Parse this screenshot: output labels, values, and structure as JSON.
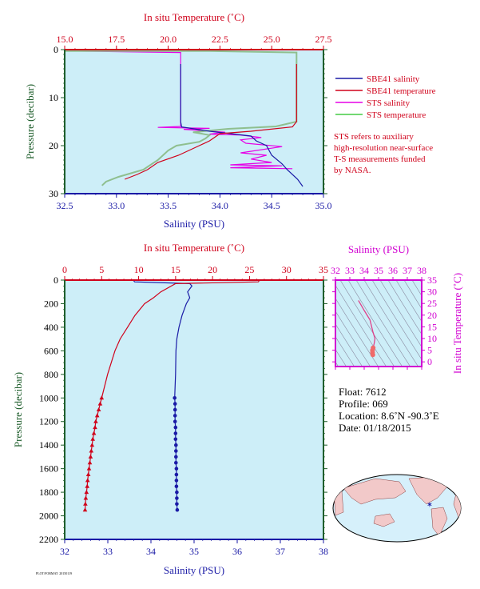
{
  "top_panel": {
    "top_axis_label": "In situ Temperature (˚C)",
    "left_axis_label": "Pressure (decibar)",
    "bottom_axis_label": "Salinity (PSU)"
  },
  "legend": [
    {
      "label": "SBE41 salinity",
      "color": "#1a1aa6"
    },
    {
      "label": "SBE41 temperature",
      "color": "#d0021b"
    },
    {
      "label": "STS salinity",
      "color": "#e600e6"
    },
    {
      "label": "STS temperature",
      "color": "#44cc44"
    }
  ],
  "note_lines": [
    "STS refers to auxiliary",
    "high-resolution near-surface",
    "T-S measurements funded",
    "by NASA."
  ],
  "bottom_panel": {
    "top_axis_label": "In situ Temperature (˚C)",
    "left_axis_label": "Pressure (decibar)",
    "bottom_axis_label": "Salinity (PSU)"
  },
  "ts_panel": {
    "top_axis_label": "Salinity (PSU)",
    "right_axis_label": "In situ Temperature (˚C)"
  },
  "float_info": {
    "float": "Float:  7612",
    "profile": "Profile:  069",
    "location": "Location:  8.6˚N  -90.3˚E",
    "date": "Date:  01/18/2015"
  },
  "footer_text": "PLOT/FORMAT: 20150119",
  "colors": {
    "plot_bg": "#cdeef8",
    "salinity": "#1a1aa6",
    "temperature": "#d0021b",
    "sts_salinity": "#e600e6",
    "sts_temperature": "#8fbf8f",
    "axis_red": "#d0021b",
    "axis_green": "#1f5e2c",
    "axis_magenta": "#d100d1"
  },
  "chart_data": [
    {
      "type": "line",
      "title": "",
      "xlabel": "Salinity (PSU)",
      "x2label": "In situ Temperature (˚C)",
      "ylabel": "Pressure (decibar)",
      "xlim": [
        32.5,
        35.0
      ],
      "x2lim": [
        15.0,
        27.5
      ],
      "ylim": [
        30,
        0
      ],
      "x_ticks": [
        "32.5",
        "33.0",
        "33.5",
        "34.0",
        "34.5",
        "35.0"
      ],
      "x2_ticks": [
        "15.0",
        "17.5",
        "20.0",
        "22.5",
        "25.0",
        "27.5"
      ],
      "y_ticks": [
        "0",
        "10",
        "20",
        "30"
      ],
      "series": [
        {
          "name": "SBE41 salinity",
          "axis": "salinity",
          "points": [
            [
              33.62,
              3
            ],
            [
              33.62,
              15
            ],
            [
              33.63,
              16.1
            ],
            [
              33.9,
              17
            ],
            [
              34.3,
              18
            ],
            [
              34.35,
              19
            ],
            [
              34.45,
              20
            ],
            [
              34.5,
              22
            ],
            [
              34.6,
              23.8
            ],
            [
              34.65,
              25
            ],
            [
              34.75,
              27
            ],
            [
              34.8,
              28.5
            ]
          ]
        },
        {
          "name": "SBE41 temperature",
          "axis": "temperature",
          "points": [
            [
              26.2,
              3
            ],
            [
              26.2,
              15
            ],
            [
              26.0,
              16.1
            ],
            [
              24.0,
              17
            ],
            [
              22.5,
              17.5
            ],
            [
              22.0,
              19
            ],
            [
              21.5,
              20
            ],
            [
              20.5,
              22
            ],
            [
              19.5,
              23.5
            ],
            [
              19.0,
              25
            ],
            [
              18.5,
              26
            ],
            [
              17.9,
              27
            ]
          ]
        },
        {
          "name": "STS salinity",
          "axis": "salinity",
          "points": [
            [
              32.55,
              0.3
            ],
            [
              33.62,
              0.6
            ],
            [
              33.62,
              16
            ],
            [
              33.4,
              16.2
            ],
            [
              33.9,
              16.4
            ],
            [
              33.65,
              16.6
            ],
            [
              34.05,
              17.2
            ],
            [
              33.9,
              17.6
            ],
            [
              34.2,
              17.8
            ],
            [
              34.4,
              18.3
            ],
            [
              34.2,
              18.8
            ],
            [
              34.25,
              19.5
            ],
            [
              34.6,
              20.2
            ],
            [
              34.2,
              21.5
            ],
            [
              34.45,
              22.0
            ],
            [
              34.3,
              22.8
            ],
            [
              34.5,
              23.5
            ],
            [
              34.1,
              24.0
            ],
            [
              34.6,
              24.2
            ],
            [
              34.1,
              24.6
            ],
            [
              34.7,
              24.8
            ]
          ]
        },
        {
          "name": "STS temperature",
          "axis": "temperature",
          "points": [
            [
              15.0,
              0.3
            ],
            [
              22.0,
              0.3
            ],
            [
              26.2,
              0.6
            ],
            [
              26.2,
              15
            ],
            [
              25.2,
              16.0
            ],
            [
              22.9,
              16.5
            ],
            [
              21.2,
              17.2
            ],
            [
              22.0,
              17.8
            ],
            [
              21.8,
              18.5
            ],
            [
              21.5,
              19.2
            ],
            [
              20.4,
              20.0
            ],
            [
              20.0,
              21.0
            ],
            [
              19.5,
              23.0
            ],
            [
              18.8,
              25.0
            ],
            [
              17.6,
              26.5
            ],
            [
              17.0,
              27.5
            ],
            [
              16.8,
              28.3
            ]
          ]
        }
      ]
    },
    {
      "type": "line",
      "title": "",
      "xlabel": "Salinity (PSU)",
      "x2label": "In situ Temperature (˚C)",
      "ylabel": "Pressure (decibar)",
      "xlim": [
        32,
        38
      ],
      "x2lim": [
        0,
        35
      ],
      "ylim": [
        2200,
        0
      ],
      "x_ticks": [
        "32",
        "33",
        "34",
        "35",
        "36",
        "37",
        "38"
      ],
      "x2_ticks": [
        "0",
        "5",
        "10",
        "15",
        "20",
        "25",
        "30",
        "35"
      ],
      "y_ticks": [
        "0",
        "200",
        "400",
        "600",
        "800",
        "1000",
        "1200",
        "1400",
        "1600",
        "1800",
        "2000",
        "2200"
      ],
      "series": [
        {
          "name": "Salinity",
          "axis": "salinity",
          "points": [
            [
              33.6,
              5
            ],
            [
              33.62,
              15
            ],
            [
              34.9,
              30
            ],
            [
              34.95,
              50
            ],
            [
              34.85,
              100
            ],
            [
              34.9,
              150
            ],
            [
              34.82,
              200
            ],
            [
              34.72,
              300
            ],
            [
              34.65,
              400
            ],
            [
              34.6,
              500
            ],
            [
              34.58,
              600
            ],
            [
              34.57,
              800
            ],
            [
              34.55,
              1000
            ],
            [
              34.56,
              1050
            ],
            [
              34.56,
              1100
            ],
            [
              34.56,
              1150
            ],
            [
              34.56,
              1200
            ],
            [
              34.57,
              1250
            ],
            [
              34.57,
              1300
            ],
            [
              34.57,
              1350
            ],
            [
              34.58,
              1400
            ],
            [
              34.58,
              1450
            ],
            [
              34.58,
              1500
            ],
            [
              34.58,
              1550
            ],
            [
              34.59,
              1600
            ],
            [
              34.59,
              1650
            ],
            [
              34.59,
              1700
            ],
            [
              34.59,
              1750
            ],
            [
              34.6,
              1800
            ],
            [
              34.6,
              1850
            ],
            [
              34.6,
              1900
            ],
            [
              34.61,
              1950
            ]
          ]
        },
        {
          "name": "Temperature",
          "axis": "temperature",
          "points": [
            [
              26.3,
              5
            ],
            [
              26.2,
              15
            ],
            [
              15.0,
              30
            ],
            [
              13.0,
              100
            ],
            [
              12.0,
              150
            ],
            [
              10.8,
              200
            ],
            [
              9.5,
              300
            ],
            [
              8.5,
              400
            ],
            [
              7.5,
              500
            ],
            [
              6.8,
              600
            ],
            [
              5.8,
              800
            ],
            [
              5.0,
              1000
            ],
            [
              4.8,
              1050
            ],
            [
              4.6,
              1100
            ],
            [
              4.4,
              1150
            ],
            [
              4.2,
              1200
            ],
            [
              4.1,
              1250
            ],
            [
              3.95,
              1300
            ],
            [
              3.8,
              1350
            ],
            [
              3.7,
              1400
            ],
            [
              3.6,
              1450
            ],
            [
              3.5,
              1500
            ],
            [
              3.4,
              1550
            ],
            [
              3.3,
              1600
            ],
            [
              3.2,
              1650
            ],
            [
              3.1,
              1700
            ],
            [
              3.05,
              1750
            ],
            [
              2.95,
              1800
            ],
            [
              2.85,
              1850
            ],
            [
              2.8,
              1900
            ],
            [
              2.75,
              1950
            ]
          ]
        }
      ]
    },
    {
      "type": "line",
      "title": "",
      "xlabel": "Salinity (PSU)",
      "ylabel": "In situ Temperature (˚C)",
      "xlim": [
        32,
        38
      ],
      "ylim": [
        -2,
        35
      ],
      "x_ticks": [
        "32",
        "33",
        "34",
        "35",
        "36",
        "37",
        "38"
      ],
      "y_ticks": [
        "0",
        "5",
        "10",
        "15",
        "20",
        "25",
        "30",
        "35"
      ],
      "series": [
        {
          "name": "T-S",
          "points": [
            [
              33.6,
              26.3
            ],
            [
              34.0,
              22.0
            ],
            [
              34.4,
              18.0
            ],
            [
              34.6,
              13.0
            ],
            [
              34.75,
              10.0
            ],
            [
              34.7,
              8.0
            ],
            [
              34.62,
              6.0
            ],
            [
              34.58,
              5.0
            ],
            [
              34.58,
              4.0
            ],
            [
              34.6,
              3.0
            ]
          ]
        }
      ]
    }
  ]
}
